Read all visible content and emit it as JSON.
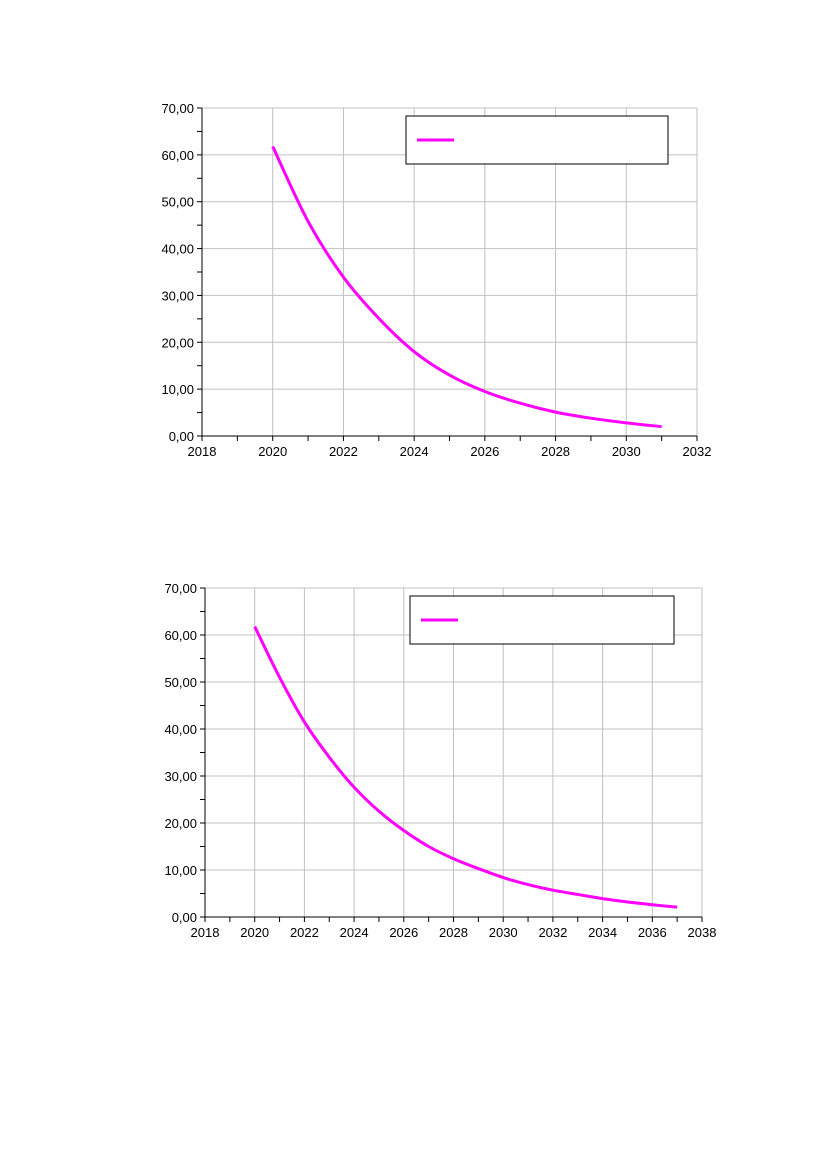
{
  "chart_data": [
    {
      "type": "line",
      "title": "",
      "xlabel": "",
      "ylabel": "",
      "xlim": [
        2018,
        2032
      ],
      "ylim": [
        0,
        70
      ],
      "x_ticks": [
        "2018",
        "2020",
        "2022",
        "2024",
        "2026",
        "2028",
        "2030",
        "2032"
      ],
      "y_ticks": [
        "0,00",
        "10,00",
        "20,00",
        "30,00",
        "40,00",
        "50,00",
        "60,00",
        "70,00"
      ],
      "grid": true,
      "legend_position": "top-right",
      "series": [
        {
          "name": "",
          "color": "#ff00ff",
          "x": [
            2020,
            2021,
            2022,
            2023,
            2024,
            2025,
            2026,
            2027,
            2028,
            2029,
            2030,
            2031
          ],
          "y": [
            61.8,
            45.8,
            33.9,
            25.1,
            18.0,
            13.0,
            9.5,
            7.0,
            5.1,
            3.8,
            2.8,
            2.0
          ]
        }
      ]
    },
    {
      "type": "line",
      "title": "",
      "xlabel": "",
      "ylabel": "",
      "xlim": [
        2018,
        2038
      ],
      "ylim": [
        0,
        70
      ],
      "x_ticks": [
        "2018",
        "2020",
        "2022",
        "2024",
        "2026",
        "2028",
        "2030",
        "2032",
        "2034",
        "2036",
        "2038"
      ],
      "y_ticks": [
        "0,00",
        "10,00",
        "20,00",
        "30,00",
        "40,00",
        "50,00",
        "60,00",
        "70,00"
      ],
      "grid": true,
      "legend_position": "top-right",
      "series": [
        {
          "name": "",
          "color": "#ff00ff",
          "x": [
            2020,
            2021,
            2022,
            2023,
            2024,
            2025,
            2026,
            2027,
            2028,
            2029,
            2030,
            2031,
            2032,
            2033,
            2034,
            2035,
            2036,
            2037
          ],
          "y": [
            61.8,
            51.0,
            41.5,
            34.0,
            27.6,
            22.5,
            18.4,
            15.0,
            12.4,
            10.3,
            8.4,
            6.9,
            5.7,
            4.8,
            3.9,
            3.2,
            2.6,
            2.1
          ]
        }
      ]
    }
  ]
}
